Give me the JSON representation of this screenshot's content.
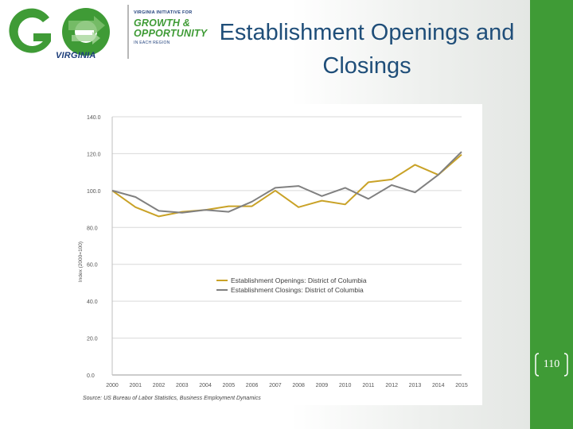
{
  "slide": {
    "title": "Establishment Openings and Closings",
    "page_number": "110"
  },
  "logo": {
    "main_letters": "GO",
    "state_word": "VIRGINIA",
    "tagline_top": "VIRGINIA INITIATIVE FOR",
    "tagline_line1": "GROWTH &",
    "tagline_line2": "OPPORTUNITY",
    "tagline_bottom": "IN EACH REGION"
  },
  "colors": {
    "accent_green": "#3f9b36",
    "title_blue": "#1f4e79",
    "openings_series": "#c9a227",
    "closings_series": "#808080"
  },
  "chart_data": {
    "type": "line",
    "title": "",
    "xlabel": "",
    "ylabel": "Index (2000=100)",
    "ylim": [
      0,
      140
    ],
    "yticks": [
      "0.0",
      "20.0",
      "40.0",
      "60.0",
      "80.0",
      "100.0",
      "120.0",
      "140.0"
    ],
    "ytick_values": [
      0,
      20,
      40,
      60,
      80,
      100,
      120,
      140
    ],
    "grid": true,
    "legend_position": "center-right",
    "categories": [
      "2000",
      "2001",
      "2002",
      "2003",
      "2004",
      "2005",
      "2006",
      "2007",
      "2008",
      "2009",
      "2010",
      "2011",
      "2012",
      "2013",
      "2014",
      "2015"
    ],
    "series": [
      {
        "name": "Establishment Openings: District of Columbia",
        "color": "#c9a227",
        "values": [
          100,
          91,
          86,
          88.5,
          89.5,
          91.5,
          91.5,
          100,
          91,
          94.5,
          92.5,
          104.5,
          106,
          114,
          108.5,
          119.5
        ]
      },
      {
        "name": "Establishment Closings: District of Columbia",
        "color": "#808080",
        "values": [
          100,
          96.5,
          89,
          88,
          89.5,
          88.5,
          94,
          101.5,
          102.5,
          97,
          101.5,
          95.5,
          103,
          99,
          108.5,
          121
        ]
      }
    ],
    "source": "Source: US Bureau of Labor Statistics, Business Employment Dynamics"
  }
}
